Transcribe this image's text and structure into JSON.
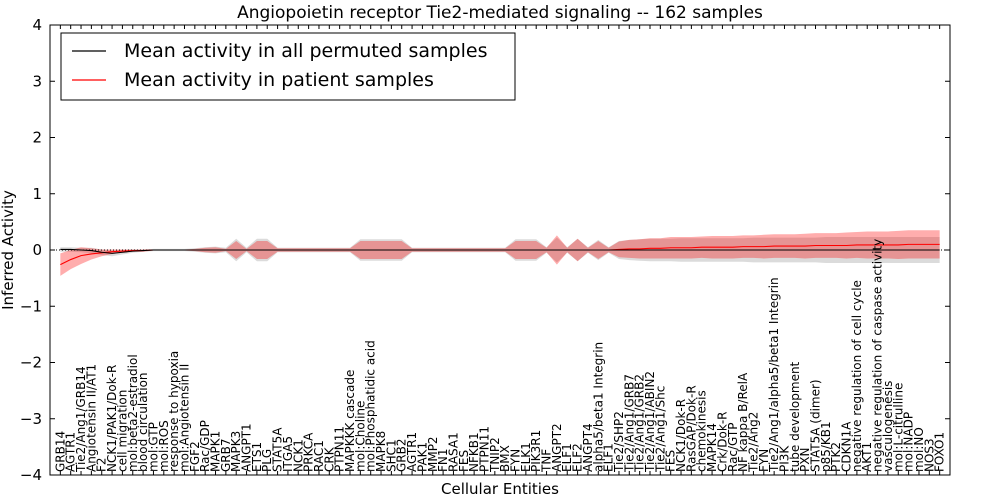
{
  "chart_data": {
    "type": "line",
    "title": "Angiopoietin receptor Tie2-mediated signaling -- 162 samples",
    "xlabel": "Cellular Entities",
    "ylabel": "Inferred Activity",
    "ylim": [
      -4,
      4
    ],
    "yticks": [
      -4,
      -3,
      -2,
      -1,
      0,
      1,
      2,
      3,
      4
    ],
    "legend_position": "top-left",
    "legend": [
      {
        "label": "Mean activity in all permuted samples",
        "color": "#000000"
      },
      {
        "label": "Mean activity in patient samples",
        "color": "#ff0000"
      }
    ],
    "categories": [
      "GRB14",
      "AGTR1",
      "Tie2/Ang1/GRB14",
      "Angiotensin II/AT1",
      "F2",
      "NCK1/PAK1/Dok-R",
      "cell migration",
      "mol:beta2-estradiol",
      "blood circulation",
      "mol:GTP",
      "mol:ROS",
      "response to hypoxia",
      "mol:Angiotensin II",
      "FGF2",
      "Rac/GDP",
      "MAPK1",
      "GRB7",
      "MAPK3",
      "ANGPT1",
      "ETS1",
      "PLG",
      "STAT5A",
      "ITGA5",
      "NCK1",
      "PRKCA",
      "RAC1",
      "CRK",
      "PTPN11",
      "MAPKKK cascade",
      "mol:Choline",
      "mol:Phosphatidic acid",
      "MAPK8",
      "SHC1",
      "GRB2",
      "AGTR1",
      "PAK1",
      "MMP2",
      "FN1",
      "RASA1",
      "FES",
      "NFKB1",
      "PTPN11",
      "TNIP2",
      "BMX",
      "FYN",
      "ELK1",
      "PIK3R1",
      "TNF",
      "ANGPT2",
      "ELF1",
      "ELF2",
      "ANGPT4",
      "alpha5/beta1 Integrin",
      "ELF1",
      "Tie2/SHP2",
      "Tie2/Ang1/GRB7",
      "Tie2/Ang1/GRB2",
      "Tie2/Ang1/ABIN2",
      "Tie2/Ang1/Shc",
      "FES",
      "NCK1/Dok-R",
      "RasGAP/Dok-R",
      "chemokinesis",
      "MAPK14",
      "Crk/Dok-R",
      "Rac/GTP",
      "NF kappa B/RelA",
      "Tie2/Ang2",
      "FYN",
      "Tie2/Ang1/alpha5/beta1 Integrin",
      "PI3K",
      "tube development",
      "PXN",
      "STAT5A (dimer)",
      "p85/KB1",
      "PTK2",
      "CDKN1A",
      "negative regulation of cell cycle",
      "AKT1",
      "negative regulation of caspase activity",
      "vasculogenesis",
      "mol:L-citrulline",
      "mol:NADP",
      "mol:NO",
      "NOS3",
      "FOXO1"
    ],
    "series": [
      {
        "name": "Mean activity in patient samples",
        "values": [
          -0.26,
          -0.17,
          -0.1,
          -0.07,
          -0.05,
          -0.03,
          -0.02,
          -0.01,
          -0.01,
          0,
          0,
          0,
          0,
          0,
          0,
          0,
          0,
          0,
          0,
          0,
          0,
          0,
          0,
          0,
          0,
          0,
          0,
          0,
          0,
          0,
          0,
          0,
          0,
          0,
          0,
          0,
          0,
          0,
          0,
          0,
          0,
          0,
          0,
          0,
          0,
          0,
          0,
          0,
          0,
          0,
          0,
          0,
          0,
          0,
          0.01,
          0.02,
          0.02,
          0.03,
          0.03,
          0.04,
          0.04,
          0.04,
          0.05,
          0.05,
          0.05,
          0.05,
          0.06,
          0.06,
          0.06,
          0.07,
          0.07,
          0.07,
          0.07,
          0.08,
          0.08,
          0.08,
          0.08,
          0.09,
          0.09,
          0.09,
          0.09,
          0.09,
          0.1,
          0.1,
          0.1,
          0.1
        ],
        "band": [
          0.2,
          0.17,
          0.15,
          0.1,
          0.06,
          0.04,
          0.03,
          0.02,
          0.02,
          0.01,
          0.01,
          0.01,
          0.01,
          0.02,
          0.04,
          0.05,
          0.02,
          0.16,
          0.02,
          0.16,
          0.16,
          0.03,
          0.03,
          0.03,
          0.03,
          0.03,
          0.03,
          0.03,
          0.03,
          0.16,
          0.16,
          0.16,
          0.16,
          0.16,
          0.03,
          0.03,
          0.03,
          0.03,
          0.03,
          0.03,
          0.03,
          0.03,
          0.03,
          0.03,
          0.16,
          0.16,
          0.16,
          0.04,
          0.26,
          0.04,
          0.2,
          0.04,
          0.16,
          0.04,
          0.14,
          0.16,
          0.17,
          0.18,
          0.18,
          0.19,
          0.19,
          0.19,
          0.19,
          0.2,
          0.2,
          0.2,
          0.2,
          0.2,
          0.21,
          0.21,
          0.21,
          0.21,
          0.22,
          0.22,
          0.22,
          0.22,
          0.23,
          0.23,
          0.24,
          0.24,
          0.24,
          0.25,
          0.25,
          0.25,
          0.25,
          0.25
        ]
      },
      {
        "name": "Mean activity in all permuted samples",
        "values": [
          0.01,
          0.01,
          0,
          -0.01,
          -0.04,
          -0.06,
          -0.04,
          -0.02,
          -0.01,
          0,
          0,
          0,
          0,
          0,
          0,
          0,
          0,
          0,
          0,
          0,
          0,
          0,
          0,
          0,
          0,
          0,
          0,
          0,
          0,
          0,
          0,
          0,
          0,
          0,
          0,
          0,
          0,
          0,
          0,
          0,
          0,
          0,
          0,
          0,
          0,
          0,
          0,
          0,
          0,
          0,
          0,
          0,
          0,
          0,
          0,
          0,
          0,
          0,
          0,
          0,
          0,
          0,
          0,
          0,
          0,
          0,
          0,
          0,
          0,
          0,
          0,
          0,
          0,
          0,
          0,
          0,
          0,
          0,
          0,
          0,
          0,
          0,
          0,
          0,
          0,
          0
        ],
        "band": [
          0.04,
          0.04,
          0.04,
          0.05,
          0.05,
          0.05,
          0.04,
          0.03,
          0.02,
          0.02,
          0.02,
          0.02,
          0.02,
          0.03,
          0.05,
          0.06,
          0.04,
          0.2,
          0.04,
          0.2,
          0.2,
          0.04,
          0.04,
          0.04,
          0.04,
          0.04,
          0.04,
          0.04,
          0.04,
          0.19,
          0.19,
          0.19,
          0.19,
          0.19,
          0.04,
          0.04,
          0.04,
          0.04,
          0.04,
          0.04,
          0.04,
          0.04,
          0.04,
          0.04,
          0.19,
          0.19,
          0.19,
          0.05,
          0.22,
          0.05,
          0.2,
          0.05,
          0.18,
          0.05,
          0.16,
          0.18,
          0.19,
          0.2,
          0.2,
          0.2,
          0.21,
          0.21,
          0.21,
          0.21,
          0.21,
          0.21,
          0.21,
          0.22,
          0.22,
          0.22,
          0.22,
          0.22,
          0.22,
          0.22,
          0.23,
          0.23,
          0.23,
          0.23,
          0.23,
          0.23,
          0.23,
          0.23,
          0.23,
          0.23,
          0.23,
          0.23
        ]
      }
    ]
  }
}
